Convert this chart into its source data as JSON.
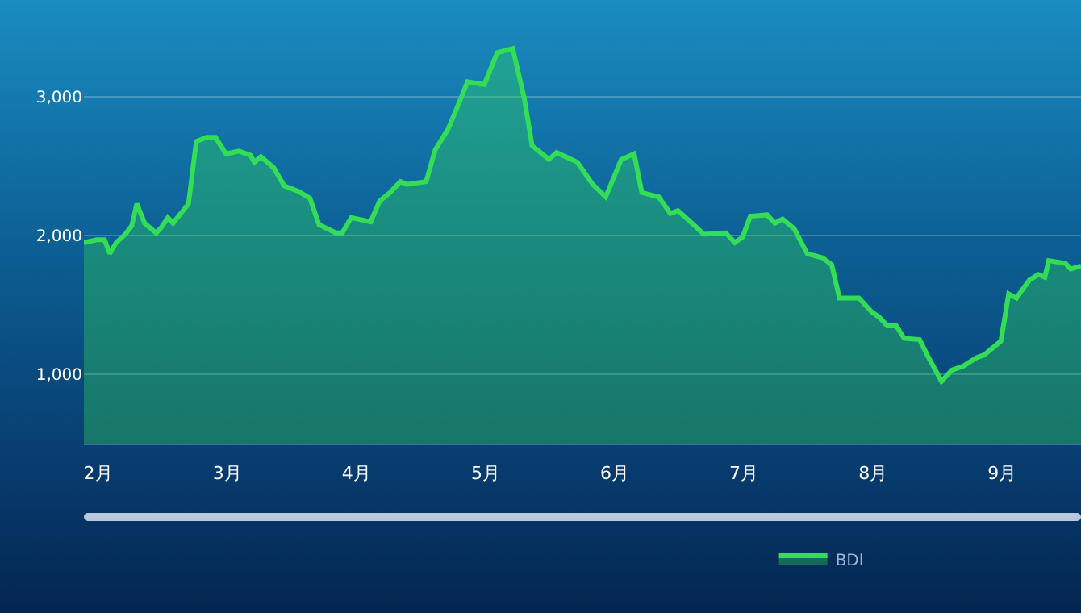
{
  "chart_data": {
    "type": "area",
    "x": [
      1.89,
      1.99,
      2.05,
      2.09,
      2.14,
      2.21,
      2.26,
      2.3,
      2.36,
      2.45,
      2.49,
      2.54,
      2.58,
      2.64,
      2.7,
      2.76,
      2.84,
      2.91,
      2.99,
      3.09,
      3.18,
      3.21,
      3.26,
      3.36,
      3.44,
      3.55,
      3.64,
      3.71,
      3.84,
      3.89,
      3.96,
      4.11,
      4.18,
      4.26,
      4.34,
      4.39,
      4.54,
      4.61,
      4.71,
      4.8,
      4.86,
      4.99,
      5.09,
      5.21,
      5.3,
      5.36,
      5.49,
      5.55,
      5.71,
      5.83,
      5.93,
      6.05,
      6.15,
      6.21,
      6.34,
      6.43,
      6.49,
      6.61,
      6.69,
      6.86,
      6.93,
      6.99,
      7.05,
      7.18,
      7.24,
      7.3,
      7.39,
      7.49,
      7.61,
      7.68,
      7.74,
      7.89,
      7.99,
      8.05,
      8.11,
      8.18,
      8.24,
      8.36,
      8.43,
      8.53,
      8.61,
      8.7,
      8.8,
      8.86,
      8.99,
      9.05,
      9.11,
      9.21,
      9.28,
      9.33,
      9.36,
      9.49,
      9.53,
      9.61
    ],
    "series": [
      {
        "name": "BDI",
        "color": "#33dd55",
        "values": [
          1950,
          1970,
          1970,
          1870,
          1950,
          2010,
          2070,
          2230,
          2090,
          2020,
          2060,
          2130,
          2090,
          2160,
          2230,
          2680,
          2710,
          2710,
          2590,
          2610,
          2580,
          2530,
          2570,
          2490,
          2360,
          2320,
          2270,
          2080,
          2020,
          2020,
          2130,
          2100,
          2250,
          2310,
          2390,
          2370,
          2390,
          2620,
          2770,
          2970,
          3110,
          3090,
          3320,
          3350,
          2990,
          2650,
          2550,
          2600,
          2530,
          2370,
          2280,
          2550,
          2590,
          2310,
          2280,
          2160,
          2180,
          2080,
          2010,
          2020,
          1950,
          1990,
          2140,
          2150,
          2090,
          2120,
          2050,
          1870,
          1840,
          1790,
          1550,
          1550,
          1450,
          1410,
          1350,
          1350,
          1260,
          1250,
          1120,
          950,
          1030,
          1060,
          1120,
          1140,
          1240,
          1580,
          1550,
          1680,
          1720,
          1700,
          1820,
          1800,
          1760,
          1780
        ]
      }
    ],
    "xlim": [
      1.89,
      9.61
    ],
    "xticks": [
      {
        "value": 2,
        "label": "2月"
      },
      {
        "value": 3,
        "label": "3月"
      },
      {
        "value": 4,
        "label": "4月"
      },
      {
        "value": 5,
        "label": "5月"
      },
      {
        "value": 6,
        "label": "6月"
      },
      {
        "value": 7,
        "label": "7月"
      },
      {
        "value": 8,
        "label": "8月"
      },
      {
        "value": 9,
        "label": "9月"
      }
    ],
    "ylim": [
      500,
      3700
    ],
    "yticks": [
      {
        "value": 500,
        "label": null
      },
      {
        "value": 1000,
        "label": "1,000"
      },
      {
        "value": 2000,
        "label": "2,000"
      },
      {
        "value": 3000,
        "label": "3,000"
      }
    ],
    "grid": "y",
    "legend": "bottom",
    "marker": "none",
    "line_style": "solid"
  }
}
